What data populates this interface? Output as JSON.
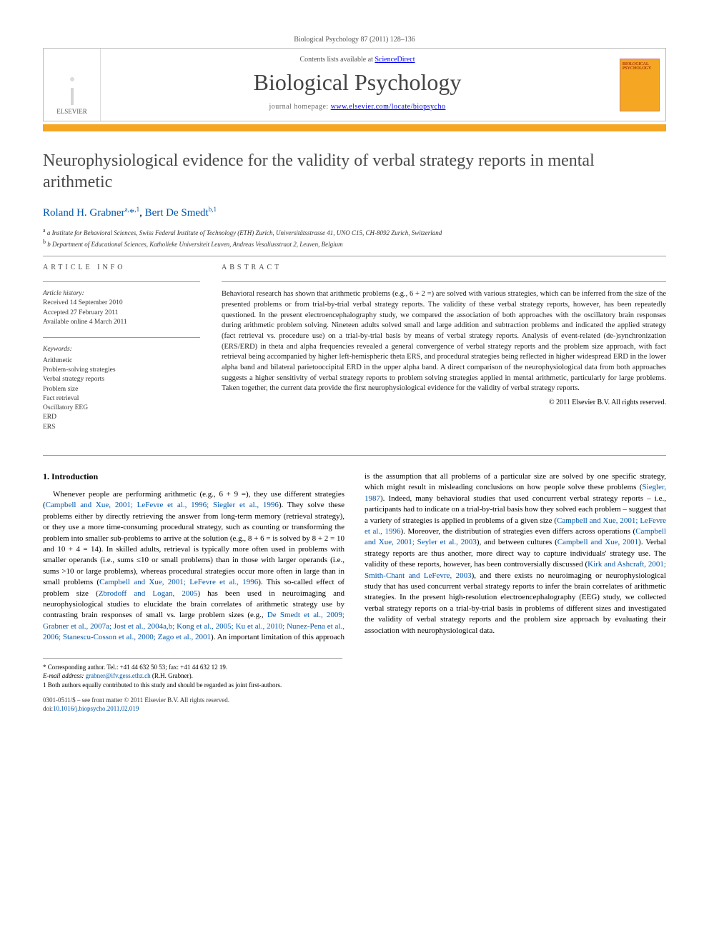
{
  "journal_ref": "Biological Psychology 87 (2011) 128–136",
  "header": {
    "contents_prefix": "Contents lists available at ",
    "contents_link": "ScienceDirect",
    "journal_title": "Biological Psychology",
    "homepage_prefix": "journal homepage: ",
    "homepage_url": "www.elsevier.com/locate/biopsycho",
    "publisher": "ELSEVIER",
    "thumb_label": "BIOLOGICAL PSYCHOLOGY"
  },
  "article": {
    "title": "Neurophysiological evidence for the validity of verbal strategy reports in mental arithmetic",
    "authors_html": "Roland H. Grabner<sup>a,</sup>*<sup>,1</sup>, Bert De Smedt<sup>b,1</sup>",
    "affiliations": [
      "a Institute for Behavioral Sciences, Swiss Federal Institute of Technology (ETH) Zurich, Universitätsstrasse 41, UNO C15, CH-8092 Zurich, Switzerland",
      "b Department of Educational Sciences, Katholieke Universiteit Leuven, Andreas Vesaliusstraat 2, Leuven, Belgium"
    ]
  },
  "info": {
    "label": "ARTICLE INFO",
    "history_label": "Article history:",
    "received": "Received 14 September 2010",
    "accepted": "Accepted 27 February 2011",
    "online": "Available online 4 March 2011",
    "keywords_label": "Keywords:",
    "keywords": [
      "Arithmetic",
      "Problem-solving strategies",
      "Verbal strategy reports",
      "Problem size",
      "Fact retrieval",
      "Oscillatory EEG",
      "ERD",
      "ERS"
    ]
  },
  "abstract": {
    "label": "ABSTRACT",
    "text": "Behavioral research has shown that arithmetic problems (e.g., 6 + 2 =) are solved with various strategies, which can be inferred from the size of the presented problems or from trial-by-trial verbal strategy reports. The validity of these verbal strategy reports, however, has been repeatedly questioned. In the present electroencephalography study, we compared the association of both approaches with the oscillatory brain responses during arithmetic problem solving. Nineteen adults solved small and large addition and subtraction problems and indicated the applied strategy (fact retrieval vs. procedure use) on a trial-by-trial basis by means of verbal strategy reports. Analysis of event-related (de-)synchronization (ERS/ERD) in theta and alpha frequencies revealed a general convergence of verbal strategy reports and the problem size approach, with fact retrieval being accompanied by higher left-hemispheric theta ERS, and procedural strategies being reflected in higher widespread ERD in the lower alpha band and bilateral parietooccipital ERD in the upper alpha band. A direct comparison of the neurophysiological data from both approaches suggests a higher sensitivity of verbal strategy reports to problem solving strategies applied in mental arithmetic, particularly for large problems. Taken together, the current data provide the first neurophysiological evidence for the validity of verbal strategy reports.",
    "copyright": "© 2011 Elsevier B.V. All rights reserved."
  },
  "body": {
    "heading": "1. Introduction",
    "p1_a": "Whenever people are performing arithmetic (e.g., 6 + 9 =), they use different strategies (",
    "p1_ref1": "Campbell and Xue, 2001; LeFevre et al., 1996; Siegler et al., 1996",
    "p1_b": "). They solve these problems either by directly retrieving the answer from long-term memory (retrieval strategy), or they use a more time-consuming procedural strategy, such as counting or transforming the problem into smaller sub-problems to arrive at the solution (e.g., 8 + 6 = is solved by 8 + 2 = 10 and 10 + 4 = 14). In skilled adults, retrieval is typically more often used in problems with smaller operands (i.e., sums ≤10 or small problems) than in those with larger operands (i.e., sums >10 or large problems), whereas procedural strategies occur more often in large than in small problems (",
    "p1_ref2": "Campbell and Xue, 2001; LeFevre et al., 1996",
    "p1_c": "). This so-called effect of problem size (",
    "p1_ref3": "Zbrodoff and Logan, 2005",
    "p1_d": ") has been used in neuroimaging and neurophysiological studies to elucidate the brain correlates of arithmetic strategy use by contrasting brain responses of small vs. large problem sizes (e.g., ",
    "p1_ref4": "De Smedt et al., 2009; Grabner et al., 2007a; Jost et al., 2004a,b; Kong et al., 2005; Ku et al., 2010; Nunez-Pena et al., 2006; Stanescu-Cosson et al., 2000; Zago et al., 2001",
    "p1_e": "). An important limitation of this approach is the assumption that all problems of a particular size are solved by one specific strategy, which might result in misleading conclusions on how people solve these problems (",
    "p1_ref5": "Siegler, 1987",
    "p1_f": "). Indeed, many behavioral studies that used concurrent verbal strategy reports – i.e., participants had to indicate on a trial-by-trial basis how they solved each problem – suggest that a variety of strategies is applied in problems of a given size (",
    "p1_ref6": "Campbell and Xue, 2001; LeFevre et al., 1996",
    "p1_g": "). Moreover, the distribution of strategies even differs across operations (",
    "p1_ref7": "Campbell and Xue, 2001; Seyler et al., 2003",
    "p1_h": "), and between cultures (",
    "p1_ref8": "Campbell and Xue, 2001",
    "p1_i": "). Verbal strategy reports are thus another, more direct way to capture individuals' strategy use. The validity of these reports, however, has been controversially discussed (",
    "p1_ref9": "Kirk and Ashcraft, 2001; Smith-Chant and LeFevre, 2003",
    "p1_j": "), and there exists no neuroimaging or neurophysiological study that has used concurrent verbal strategy reports to infer the brain correlates of arithmetic strategies. In the present high-resolution electroencephalography (EEG) study, we collected verbal strategy reports on a trial-by-trial basis in problems of different sizes and investigated the validity of verbal strategy reports and the problem size approach by evaluating their association with neurophysiological data."
  },
  "footnotes": {
    "corr_label": "* Corresponding author. Tel.: +41 44 632 50 53; fax: +41 44 632 12 19.",
    "email_label": "E-mail address: ",
    "email": "grabner@ifv.gess.ethz.ch",
    "email_paren": " (R.H. Grabner).",
    "contrib": "1 Both authors equally contributed to this study and should be regarded as joint first-authors."
  },
  "footer": {
    "line1": "0301-0511/$ – see front matter © 2011 Elsevier B.V. All rights reserved.",
    "doi_label": "doi:",
    "doi": "10.1016/j.biopsycho.2011.02.019"
  }
}
